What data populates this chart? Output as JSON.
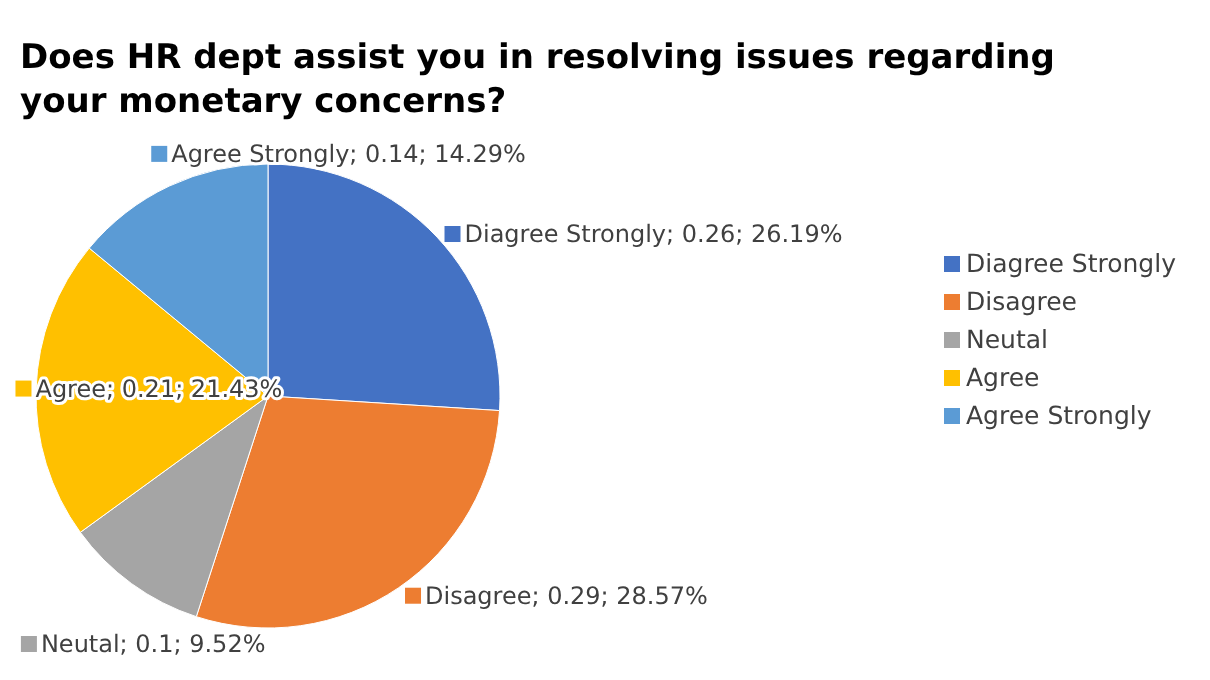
{
  "chart_data": {
    "type": "pie",
    "title": "Does HR dept assist you in resolving issues regarding your monetary concerns?",
    "categories": [
      "Diagree Strongly",
      "Disagree",
      "Neutal",
      "Agree",
      "Agree Strongly"
    ],
    "values": [
      0.26,
      0.29,
      0.1,
      0.21,
      0.14
    ],
    "value_labels": [
      "Diagree Strongly; 0.26; 26.19%",
      "Disagree; 0.29; 28.57%",
      "Neutal; 0.1; 9.52%",
      "Agree; 0.21; 21.43%",
      "Agree Strongly; 0.14; 14.29%"
    ],
    "colors": [
      "#4472c4",
      "#ed7d31",
      "#a5a5a5",
      "#ffc000",
      "#5b9bd5"
    ],
    "legend": "right"
  }
}
